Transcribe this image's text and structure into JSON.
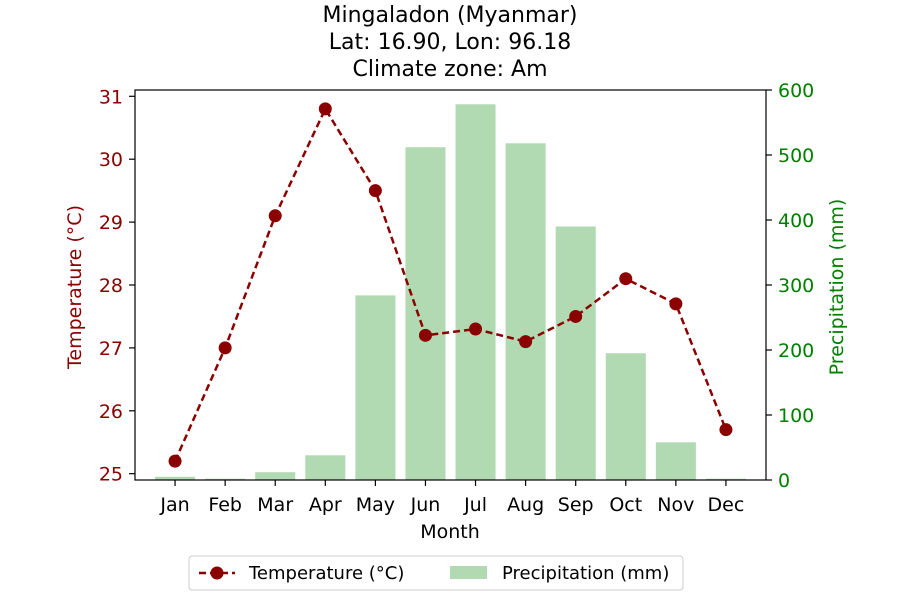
{
  "chart_data": {
    "type": "bar",
    "title_lines": [
      "Mingaladon (Myanmar)",
      "Lat: 16.90, Lon: 96.18",
      "Climate zone: Am"
    ],
    "xlabel": "Month",
    "categories": [
      "Jan",
      "Feb",
      "Mar",
      "Apr",
      "May",
      "Jun",
      "Jul",
      "Aug",
      "Sep",
      "Oct",
      "Nov",
      "Dec"
    ],
    "y_left": {
      "label": "Temperature (°C)",
      "range": [
        24.9,
        31.1
      ],
      "ticks": [
        "25",
        "26",
        "27",
        "28",
        "29",
        "30",
        "31"
      ]
    },
    "y_right": {
      "label": "Precipitation (mm)",
      "range": [
        0,
        600
      ],
      "ticks": [
        "0",
        "100",
        "200",
        "300",
        "400",
        "500",
        "600"
      ]
    },
    "series": [
      {
        "name": "Temperature (°C)",
        "kind": "line",
        "axis": "left",
        "values": [
          25.2,
          27.0,
          29.1,
          30.8,
          29.5,
          27.2,
          27.3,
          27.1,
          27.5,
          28.1,
          27.7,
          25.7
        ]
      },
      {
        "name": "Precipitation (mm)",
        "kind": "bar",
        "axis": "right",
        "values": [
          5,
          2,
          12,
          38,
          284,
          512,
          578,
          518,
          390,
          195,
          58,
          2
        ]
      }
    ],
    "legend_position": "bottom-center",
    "grid": false
  },
  "colors": {
    "temperature": "#8b0000",
    "precipitation": "#b2dab2",
    "right_axis": "#008000",
    "axes": "#000000"
  }
}
